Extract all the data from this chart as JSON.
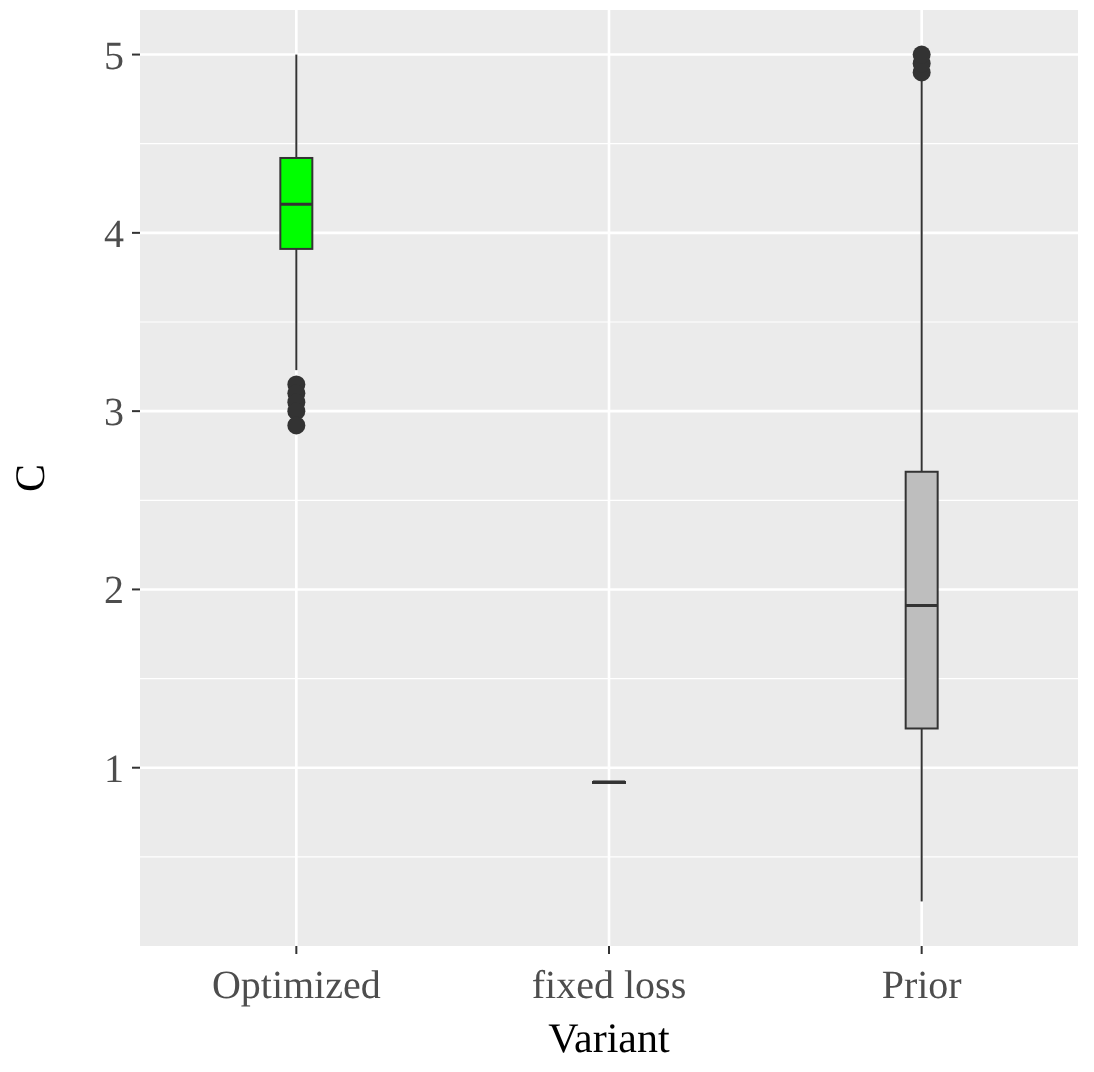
{
  "chart_data": {
    "type": "box",
    "xlabel": "Variant",
    "ylabel": "C",
    "categories": [
      "Optimized",
      "fixed loss",
      "Prior"
    ],
    "colors": [
      "#00ff00",
      "#bebebe",
      "#bebebe"
    ],
    "boxes": [
      {
        "low": 3.23,
        "q1": 3.91,
        "median": 4.16,
        "q3": 4.42,
        "high": 5.0,
        "outliers": [
          3.15,
          3.1,
          3.05,
          3.0,
          2.92
        ]
      },
      {
        "low": 0.92,
        "q1": 0.92,
        "median": 0.92,
        "q3": 0.92,
        "high": 0.92
      },
      {
        "low": 0.25,
        "q1": 1.22,
        "median": 1.91,
        "q3": 2.66,
        "high": 4.87,
        "outliers": [
          4.9,
          4.95,
          5.0
        ]
      }
    ],
    "ylim": [
      0,
      5.25
    ],
    "yticks": [
      {
        "value": 0.5,
        "label": null
      },
      1,
      {
        "value": 1.5,
        "label": null
      },
      2,
      {
        "value": 2.5,
        "label": null
      },
      3,
      {
        "value": 3.5,
        "label": null
      },
      4,
      {
        "value": 4.5,
        "label": null
      },
      5
    ],
    "grid": true
  }
}
